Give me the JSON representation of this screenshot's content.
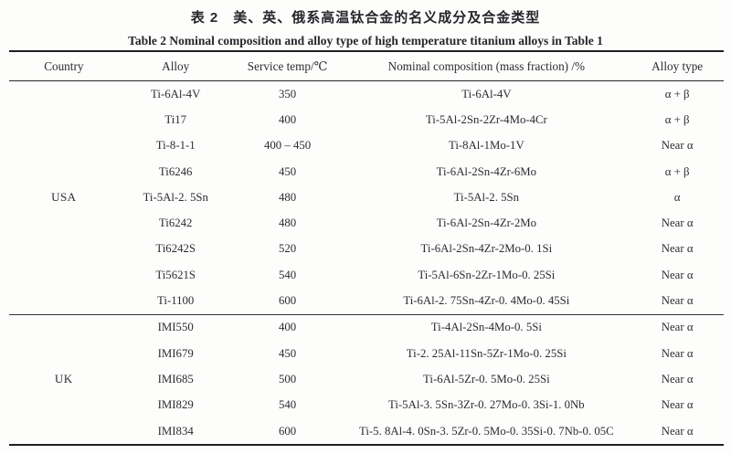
{
  "page": {
    "background": "#fdfdfc",
    "text_color": "#2c2c33",
    "rule_color": "#1f1f24"
  },
  "title_zh": "表 2　美、英、俄系高温钛合金的名义成分及合金类型",
  "title_en": "Table 2   Nominal composition and alloy type of high temperature titanium alloys in Table 1",
  "table": {
    "headers": [
      "Country",
      "Alloy",
      "Service temp/℃",
      "Nominal composition (mass fraction) /%",
      "Alloy type"
    ],
    "sections": [
      {
        "country": "USA",
        "rows": [
          {
            "alloy": "Ti-6Al-4V",
            "service_temp": "350",
            "composition": "Ti-6Al-4V",
            "alloy_type": "α + β"
          },
          {
            "alloy": "Ti17",
            "service_temp": "400",
            "composition": "Ti-5Al-2Sn-2Zr-4Mo-4Cr",
            "alloy_type": "α + β"
          },
          {
            "alloy": "Ti-8-1-1",
            "service_temp": "400 – 450",
            "composition": "Ti-8Al-1Mo-1V",
            "alloy_type": "Near α"
          },
          {
            "alloy": "Ti6246",
            "service_temp": "450",
            "composition": "Ti-6Al-2Sn-4Zr-6Mo",
            "alloy_type": "α + β"
          },
          {
            "alloy": "Ti-5Al-2. 5Sn",
            "service_temp": "480",
            "composition": "Ti-5Al-2. 5Sn",
            "alloy_type": "α"
          },
          {
            "alloy": "Ti6242",
            "service_temp": "480",
            "composition": "Ti-6Al-2Sn-4Zr-2Mo",
            "alloy_type": "Near α"
          },
          {
            "alloy": "Ti6242S",
            "service_temp": "520",
            "composition": "Ti-6Al-2Sn-4Zr-2Mo-0. 1Si",
            "alloy_type": "Near α"
          },
          {
            "alloy": "Ti5621S",
            "service_temp": "540",
            "composition": "Ti-5Al-6Sn-2Zr-1Mo-0. 25Si",
            "alloy_type": "Near α"
          },
          {
            "alloy": "Ti-1100",
            "service_temp": "600",
            "composition": "Ti-6Al-2. 75Sn-4Zr-0. 4Mo-0. 45Si",
            "alloy_type": "Near α"
          }
        ]
      },
      {
        "country": "UK",
        "rows": [
          {
            "alloy": "IMI550",
            "service_temp": "400",
            "composition": "Ti-4Al-2Sn-4Mo-0. 5Si",
            "alloy_type": "Near α"
          },
          {
            "alloy": "IMI679",
            "service_temp": "450",
            "composition": "Ti-2. 25Al-11Sn-5Zr-1Mo-0. 25Si",
            "alloy_type": "Near α"
          },
          {
            "alloy": "IMI685",
            "service_temp": "500",
            "composition": "Ti-6Al-5Zr-0. 5Mo-0. 25Si",
            "alloy_type": "Near α"
          },
          {
            "alloy": "IMI829",
            "service_temp": "540",
            "composition": "Ti-5Al-3. 5Sn-3Zr-0. 27Mo-0. 3Si-1. 0Nb",
            "alloy_type": "Near α"
          },
          {
            "alloy": "IMI834",
            "service_temp": "600",
            "composition": "Ti-5. 8Al-4. 0Sn-3. 5Zr-0. 5Mo-0. 35Si-0. 7Nb-0. 05C",
            "alloy_type": "Near α"
          }
        ]
      }
    ]
  }
}
